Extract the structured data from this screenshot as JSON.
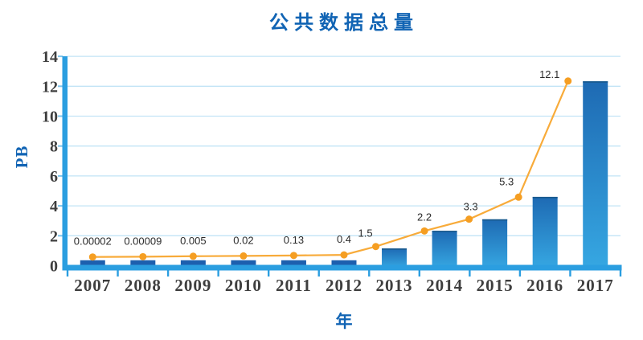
{
  "title": "公共数据总量",
  "y_axis_title": "PB",
  "x_axis_title": "年",
  "colors": {
    "title_blue": "#1164b4",
    "axis_band": "#2b9ee0",
    "gridline": "#c2e4f6",
    "grid_stub": "#7fc4ec",
    "bar_gradient_top": "#1e6ab3",
    "bar_gradient_bottom": "#36a7e2",
    "bar_top_cap": "#18598c",
    "small_bar_navy": "#1d5fae",
    "line_orange": "#f8ab3a",
    "marker_orange": "#f59e22",
    "tick_text": "#3e3e3e",
    "data_label_text": "#2b2b2b"
  },
  "chart_data": {
    "type": "bar",
    "subtype": "bar-with-line-overlay",
    "title": "公共数据总量",
    "xlabel": "年",
    "ylabel": "PB",
    "categories": [
      "2007",
      "2008",
      "2009",
      "2010",
      "2011",
      "2012",
      "2013",
      "2014",
      "2015",
      "2016",
      "2017"
    ],
    "values": [
      2e-05,
      9e-05,
      0.005,
      0.02,
      0.13,
      0.4,
      1.5,
      2.2,
      3.3,
      5.3,
      12.1
    ],
    "value_labels": [
      "0.00002",
      "0.00009",
      "0.005",
      "0.02",
      "0.13",
      "0.4",
      "1.5",
      "2.2",
      "3.3",
      "5.3",
      "12.1"
    ],
    "bar_display_values": [
      0.36,
      0.36,
      0.36,
      0.36,
      0.36,
      0.36,
      1.15,
      2.33,
      3.1,
      4.6,
      12.33
    ],
    "line_display_values": [
      0.58,
      0.6,
      0.63,
      0.65,
      0.68,
      0.72,
      1.28,
      2.32,
      3.11,
      4.58,
      12.35
    ],
    "ylim": [
      0,
      14
    ],
    "yticks": [
      0,
      2,
      4,
      6,
      8,
      10,
      12,
      14
    ],
    "grid": true,
    "legend_position": "none"
  }
}
